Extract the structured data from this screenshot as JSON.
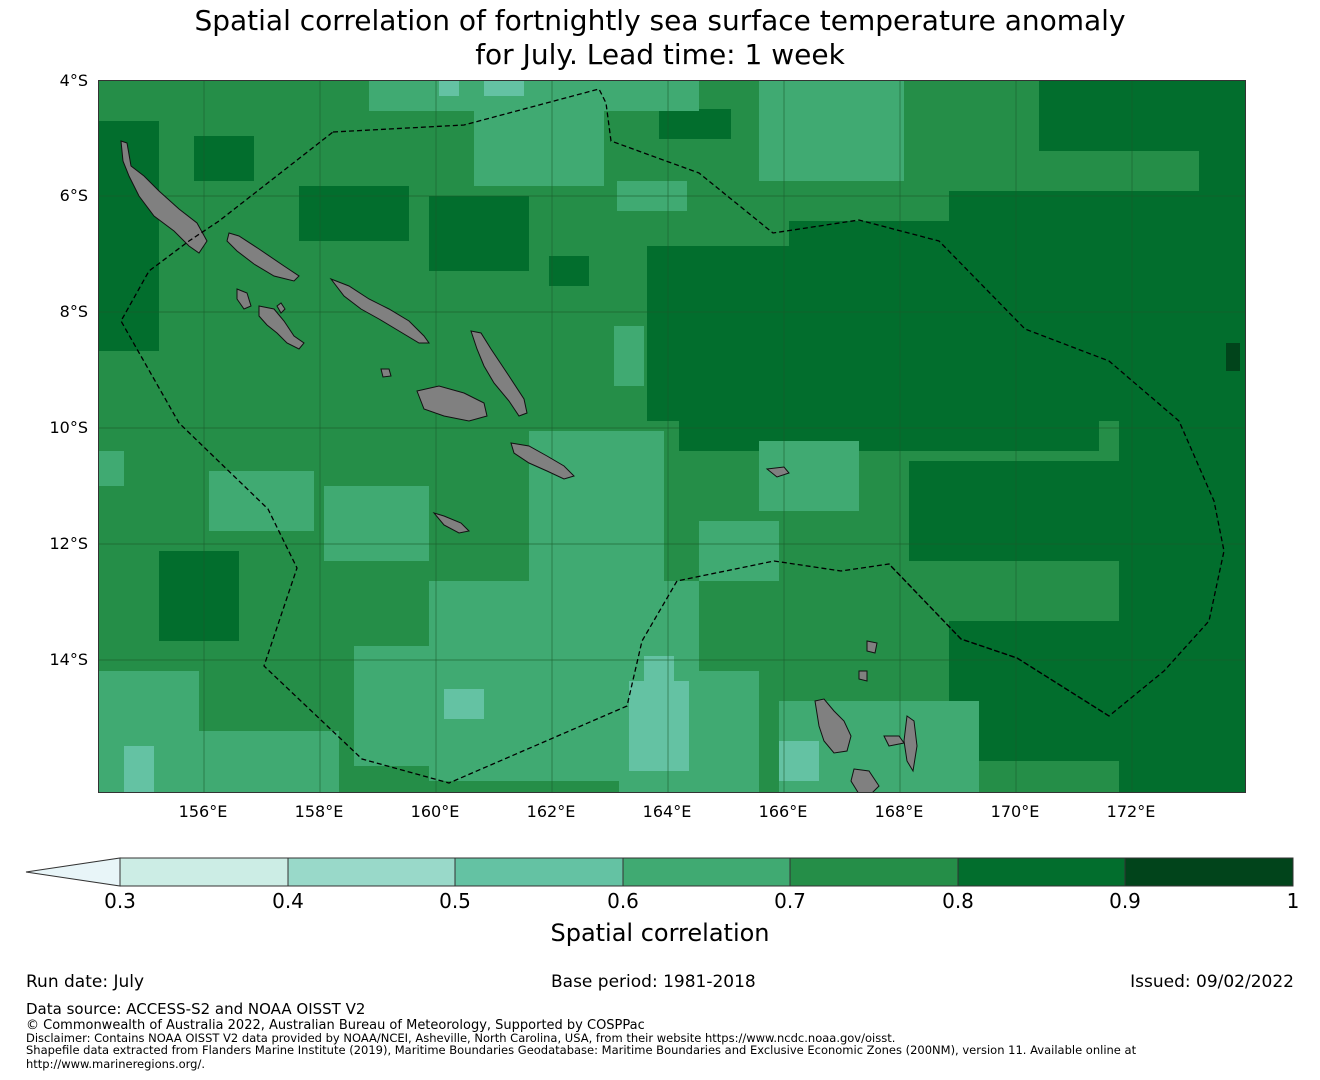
{
  "title": {
    "line1": "Spatial correlation of fortnightly sea surface temperature anomaly",
    "line2": "for July. Lead time: 1 week"
  },
  "map": {
    "lat_labels": [
      "4°S",
      "6°S",
      "8°S",
      "10°S",
      "12°S",
      "14°S"
    ],
    "lon_labels": [
      "156°E",
      "158°E",
      "160°E",
      "162°E",
      "164°E",
      "166°E",
      "168°E",
      "170°E",
      "172°E"
    ],
    "land_color": "#808080",
    "grid_color": "#1a5a2a",
    "boundary_style": "dashed black"
  },
  "colorbar": {
    "label": "Spatial correlation",
    "ticks": [
      "0.3",
      "0.4",
      "0.5",
      "0.6",
      "0.7",
      "0.8",
      "0.9",
      "1"
    ],
    "colors": [
      "#e8f5f8",
      "#ccede5",
      "#99d9c9",
      "#64c2a3",
      "#40aa72",
      "#258e48",
      "#026e2d",
      "#01441b"
    ],
    "extend": "min"
  },
  "footer": {
    "run_date": "Run date: July",
    "base_period": "Base period: 1981-2018",
    "issued": "Issued: 09/02/2022",
    "data_source": "Data source: ACCESS-S2 and NOAA OISST V2",
    "copyright": "© Commonwealth of Australia 2022, Australian Bureau of Meteorology, Supported by COSPPac",
    "disclaimer": "Disclaimer: Contains NOAA OISST V2 data provided by NOAA/NCEI, Asheville, North Carolina, USA, from their website https://www.ncdc.noaa.gov/oisst.",
    "shapefile_1": "Shapefile data extracted from Flanders Marine Institute (2019), Maritime Boundaries Geodatabase: Maritime Boundaries and Exclusive Economic Zones (200NM), version 11. Available online at",
    "shapefile_2": "http://www.marineregions.org/."
  }
}
